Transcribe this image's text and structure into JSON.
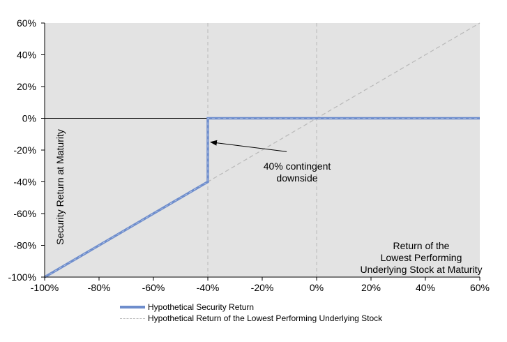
{
  "chart_data": {
    "type": "line",
    "ylabel": "Security Return at Maturity",
    "xlabel": "Return of the\nLowest Performing\nUnderlying Stock at Maturity",
    "xlim": [
      -100,
      60
    ],
    "ylim": [
      -100,
      60
    ],
    "x_ticks": [
      "-100%",
      "-80%",
      "-60%",
      "-40%",
      "-20%",
      "0%",
      "20%",
      "40%",
      "60%"
    ],
    "y_ticks": [
      "60%",
      "40%",
      "20%",
      "0%",
      "-20%",
      "-40%",
      "-60%",
      "-80%",
      "-100%"
    ],
    "x_tick_values": [
      -100,
      -80,
      -60,
      -40,
      -20,
      0,
      20,
      40,
      60
    ],
    "y_tick_values": [
      60,
      40,
      20,
      0,
      -20,
      -40,
      -60,
      -80,
      -100
    ],
    "annotation": "40% contingent\ndownside",
    "annotation_target": [
      -40,
      -15
    ],
    "annotation_anchor": [
      -11,
      -21
    ],
    "guides_x": [
      -40,
      0
    ],
    "series": [
      {
        "name": "Hypothetical Security Return",
        "style": "solid",
        "color": "#6e8dcc",
        "x": [
          -100,
          -40,
          -40,
          60
        ],
        "y": [
          -100,
          -40,
          0,
          0
        ]
      },
      {
        "name": "Hypothetical Return of the Lowest Performing Underlying Stock",
        "style": "dashed",
        "color": "#b8b8b8",
        "x": [
          -100,
          60
        ],
        "y": [
          -100,
          60
        ]
      }
    ],
    "grid": false,
    "legend_position": "bottom-left"
  }
}
